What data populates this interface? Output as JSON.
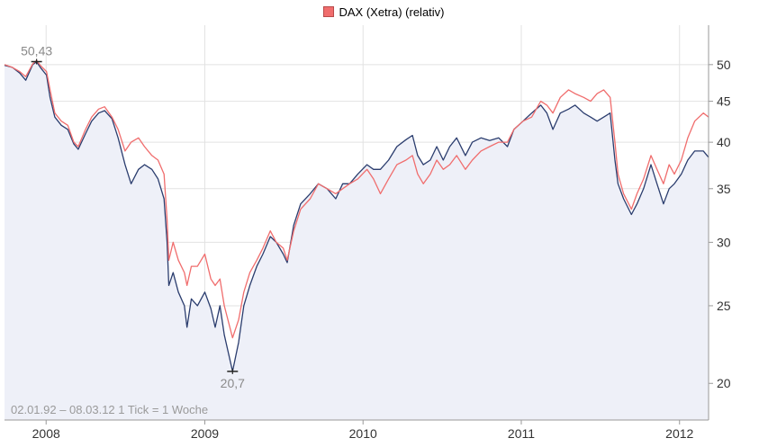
{
  "chart_data": {
    "type": "line",
    "legend": {
      "label": "DAX (Xetra) (relativ)",
      "color": "#f06d6d",
      "placement": "top-center"
    },
    "date_range_label": "02.01.92 – 08.03.12",
    "tick_label": "1 Tick = 1 Woche",
    "x_ticks": [
      "2008",
      "2009",
      "2010",
      "2011",
      "2012"
    ],
    "y_ticks": [
      20,
      25,
      30,
      35,
      40,
      45,
      50
    ],
    "y_scale": "log",
    "ylim": [
      18,
      56
    ],
    "xlim": [
      "2007-09-27",
      "2012-03-08"
    ],
    "grid": true,
    "annotations": [
      {
        "text": "50,43",
        "x": "2007-12-10",
        "y": 50.43
      },
      {
        "text": "20,7",
        "x": "2009-03-06",
        "y": 20.7
      }
    ],
    "series": [
      {
        "color": "#2b3d6e",
        "fill": "#eef0f8",
        "points": [
          [
            "2007-09-27",
            49.9
          ],
          [
            "2007-10-15",
            49.6
          ],
          [
            "2007-11-01",
            48.8
          ],
          [
            "2007-11-15",
            47.8
          ],
          [
            "2007-12-01",
            50.0
          ],
          [
            "2007-12-10",
            50.4
          ],
          [
            "2007-12-20",
            49.5
          ],
          [
            "2008-01-02",
            48.5
          ],
          [
            "2008-01-10",
            45.5
          ],
          [
            "2008-01-21",
            43.0
          ],
          [
            "2008-02-05",
            42.0
          ],
          [
            "2008-02-20",
            41.5
          ],
          [
            "2008-03-05",
            39.8
          ],
          [
            "2008-03-15",
            39.2
          ],
          [
            "2008-04-01",
            41.0
          ],
          [
            "2008-04-15",
            42.5
          ],
          [
            "2008-05-01",
            43.5
          ],
          [
            "2008-05-15",
            43.8
          ],
          [
            "2008-06-01",
            42.8
          ],
          [
            "2008-06-15",
            40.5
          ],
          [
            "2008-07-01",
            37.5
          ],
          [
            "2008-07-15",
            35.5
          ],
          [
            "2008-08-01",
            37.0
          ],
          [
            "2008-08-15",
            37.5
          ],
          [
            "2008-09-01",
            37.0
          ],
          [
            "2008-09-15",
            36.0
          ],
          [
            "2008-09-29",
            34.0
          ],
          [
            "2008-10-06",
            30.0
          ],
          [
            "2008-10-10",
            26.5
          ],
          [
            "2008-10-20",
            27.5
          ],
          [
            "2008-11-01",
            26.0
          ],
          [
            "2008-11-15",
            25.0
          ],
          [
            "2008-11-21",
            23.5
          ],
          [
            "2008-12-01",
            25.5
          ],
          [
            "2008-12-15",
            25.0
          ],
          [
            "2009-01-01",
            26.0
          ],
          [
            "2009-01-15",
            24.8
          ],
          [
            "2009-01-25",
            23.5
          ],
          [
            "2009-02-05",
            25.0
          ],
          [
            "2009-02-15",
            23.0
          ],
          [
            "2009-03-06",
            20.7
          ],
          [
            "2009-03-20",
            22.5
          ],
          [
            "2009-04-01",
            25.0
          ],
          [
            "2009-04-15",
            26.5
          ],
          [
            "2009-05-01",
            28.0
          ],
          [
            "2009-05-15",
            29.0
          ],
          [
            "2009-06-01",
            30.5
          ],
          [
            "2009-06-15",
            30.0
          ],
          [
            "2009-07-01",
            29.0
          ],
          [
            "2009-07-10",
            28.3
          ],
          [
            "2009-07-25",
            31.5
          ],
          [
            "2009-08-10",
            33.5
          ],
          [
            "2009-09-01",
            34.5
          ],
          [
            "2009-09-20",
            35.5
          ],
          [
            "2009-10-10",
            35.0
          ],
          [
            "2009-10-30",
            34.0
          ],
          [
            "2009-11-15",
            35.5
          ],
          [
            "2009-12-01",
            35.5
          ],
          [
            "2009-12-20",
            36.5
          ],
          [
            "2010-01-10",
            37.5
          ],
          [
            "2010-01-25",
            37.0
          ],
          [
            "2010-02-10",
            37.0
          ],
          [
            "2010-03-01",
            38.0
          ],
          [
            "2010-03-20",
            39.5
          ],
          [
            "2010-04-10",
            40.3
          ],
          [
            "2010-04-25",
            40.8
          ],
          [
            "2010-05-07",
            38.5
          ],
          [
            "2010-05-20",
            37.5
          ],
          [
            "2010-06-05",
            38.0
          ],
          [
            "2010-06-20",
            39.5
          ],
          [
            "2010-07-05",
            38.0
          ],
          [
            "2010-07-20",
            39.5
          ],
          [
            "2010-08-05",
            40.5
          ],
          [
            "2010-08-25",
            38.5
          ],
          [
            "2010-09-10",
            40.0
          ],
          [
            "2010-09-30",
            40.5
          ],
          [
            "2010-10-20",
            40.2
          ],
          [
            "2010-11-10",
            40.5
          ],
          [
            "2010-11-30",
            39.5
          ],
          [
            "2010-12-15",
            41.5
          ],
          [
            "2011-01-05",
            42.5
          ],
          [
            "2011-01-25",
            43.5
          ],
          [
            "2011-02-15",
            44.5
          ],
          [
            "2011-03-01",
            43.5
          ],
          [
            "2011-03-15",
            41.5
          ],
          [
            "2011-04-01",
            43.5
          ],
          [
            "2011-04-20",
            44.0
          ],
          [
            "2011-05-05",
            44.5
          ],
          [
            "2011-05-25",
            43.5
          ],
          [
            "2011-06-10",
            43.0
          ],
          [
            "2011-06-25",
            42.5
          ],
          [
            "2011-07-10",
            43.0
          ],
          [
            "2011-07-25",
            43.5
          ],
          [
            "2011-08-05",
            38.0
          ],
          [
            "2011-08-12",
            35.5
          ],
          [
            "2011-08-25",
            34.0
          ],
          [
            "2011-09-12",
            32.5
          ],
          [
            "2011-09-25",
            33.5
          ],
          [
            "2011-10-10",
            35.0
          ],
          [
            "2011-10-27",
            37.5
          ],
          [
            "2011-11-10",
            35.5
          ],
          [
            "2011-11-25",
            33.5
          ],
          [
            "2011-12-08",
            35.0
          ],
          [
            "2011-12-20",
            35.5
          ],
          [
            "2012-01-05",
            36.5
          ],
          [
            "2012-01-20",
            38.0
          ],
          [
            "2012-02-05",
            39.0
          ],
          [
            "2012-02-25",
            39.0
          ],
          [
            "2012-03-08",
            38.3
          ]
        ]
      },
      {
        "name": "DAX (Xetra) (relativ)",
        "color": "#f06d6d",
        "points": [
          [
            "2007-09-27",
            50.0
          ],
          [
            "2007-10-15",
            49.6
          ],
          [
            "2007-11-01",
            49.0
          ],
          [
            "2007-11-15",
            48.3
          ],
          [
            "2007-12-01",
            50.1
          ],
          [
            "2007-12-10",
            50.6
          ],
          [
            "2007-12-20",
            49.8
          ],
          [
            "2008-01-02",
            49.0
          ],
          [
            "2008-01-10",
            46.5
          ],
          [
            "2008-01-21",
            43.5
          ],
          [
            "2008-02-05",
            42.5
          ],
          [
            "2008-02-20",
            42.0
          ],
          [
            "2008-03-05",
            40.0
          ],
          [
            "2008-03-15",
            39.5
          ],
          [
            "2008-04-01",
            41.5
          ],
          [
            "2008-04-15",
            43.0
          ],
          [
            "2008-05-01",
            44.0
          ],
          [
            "2008-05-15",
            44.3
          ],
          [
            "2008-06-01",
            43.0
          ],
          [
            "2008-06-15",
            41.5
          ],
          [
            "2008-07-01",
            39.0
          ],
          [
            "2008-07-15",
            40.0
          ],
          [
            "2008-08-01",
            40.5
          ],
          [
            "2008-08-15",
            39.5
          ],
          [
            "2008-09-01",
            38.5
          ],
          [
            "2008-09-15",
            38.0
          ],
          [
            "2008-09-29",
            36.5
          ],
          [
            "2008-10-06",
            32.0
          ],
          [
            "2008-10-10",
            28.5
          ],
          [
            "2008-10-20",
            30.0
          ],
          [
            "2008-11-01",
            28.5
          ],
          [
            "2008-11-15",
            27.5
          ],
          [
            "2008-11-21",
            26.5
          ],
          [
            "2008-12-01",
            28.0
          ],
          [
            "2008-12-15",
            28.0
          ],
          [
            "2009-01-01",
            29.0
          ],
          [
            "2009-01-15",
            27.0
          ],
          [
            "2009-01-25",
            26.5
          ],
          [
            "2009-02-05",
            27.0
          ],
          [
            "2009-02-15",
            25.0
          ],
          [
            "2009-03-06",
            22.8
          ],
          [
            "2009-03-20",
            24.0
          ],
          [
            "2009-04-01",
            26.0
          ],
          [
            "2009-04-15",
            27.5
          ],
          [
            "2009-05-01",
            28.5
          ],
          [
            "2009-05-15",
            29.5
          ],
          [
            "2009-06-01",
            31.0
          ],
          [
            "2009-06-15",
            30.0
          ],
          [
            "2009-07-01",
            29.5
          ],
          [
            "2009-07-10",
            28.5
          ],
          [
            "2009-07-25",
            31.0
          ],
          [
            "2009-08-10",
            33.0
          ],
          [
            "2009-09-01",
            34.0
          ],
          [
            "2009-09-20",
            35.5
          ],
          [
            "2009-10-10",
            35.0
          ],
          [
            "2009-10-30",
            34.5
          ],
          [
            "2009-11-15",
            35.0
          ],
          [
            "2009-12-01",
            35.5
          ],
          [
            "2009-12-20",
            36.0
          ],
          [
            "2010-01-10",
            37.0
          ],
          [
            "2010-01-25",
            36.0
          ],
          [
            "2010-02-10",
            34.5
          ],
          [
            "2010-03-01",
            36.0
          ],
          [
            "2010-03-20",
            37.5
          ],
          [
            "2010-04-10",
            38.0
          ],
          [
            "2010-04-25",
            38.5
          ],
          [
            "2010-05-07",
            36.5
          ],
          [
            "2010-05-20",
            35.5
          ],
          [
            "2010-06-05",
            36.5
          ],
          [
            "2010-06-20",
            38.0
          ],
          [
            "2010-07-05",
            37.0
          ],
          [
            "2010-07-20",
            37.5
          ],
          [
            "2010-08-05",
            38.5
          ],
          [
            "2010-08-25",
            37.0
          ],
          [
            "2010-09-10",
            38.0
          ],
          [
            "2010-09-30",
            39.0
          ],
          [
            "2010-10-20",
            39.5
          ],
          [
            "2010-11-10",
            40.0
          ],
          [
            "2010-11-30",
            40.0
          ],
          [
            "2010-12-15",
            41.5
          ],
          [
            "2011-01-05",
            42.5
          ],
          [
            "2011-01-25",
            43.0
          ],
          [
            "2011-02-15",
            45.0
          ],
          [
            "2011-03-01",
            44.5
          ],
          [
            "2011-03-15",
            43.5
          ],
          [
            "2011-04-01",
            45.5
          ],
          [
            "2011-04-20",
            46.5
          ],
          [
            "2011-05-05",
            46.0
          ],
          [
            "2011-05-25",
            45.5
          ],
          [
            "2011-06-10",
            45.0
          ],
          [
            "2011-06-25",
            46.0
          ],
          [
            "2011-07-10",
            46.5
          ],
          [
            "2011-07-25",
            45.5
          ],
          [
            "2011-08-05",
            40.0
          ],
          [
            "2011-08-12",
            36.5
          ],
          [
            "2011-08-25",
            34.5
          ],
          [
            "2011-09-12",
            33.0
          ],
          [
            "2011-09-25",
            34.5
          ],
          [
            "2011-10-10",
            36.0
          ],
          [
            "2011-10-27",
            38.5
          ],
          [
            "2011-11-10",
            37.0
          ],
          [
            "2011-11-25",
            35.5
          ],
          [
            "2011-12-08",
            37.5
          ],
          [
            "2011-12-20",
            36.5
          ],
          [
            "2012-01-05",
            38.0
          ],
          [
            "2012-01-20",
            40.5
          ],
          [
            "2012-02-05",
            42.5
          ],
          [
            "2012-02-25",
            43.5
          ],
          [
            "2012-03-08",
            43.0
          ]
        ]
      }
    ]
  }
}
